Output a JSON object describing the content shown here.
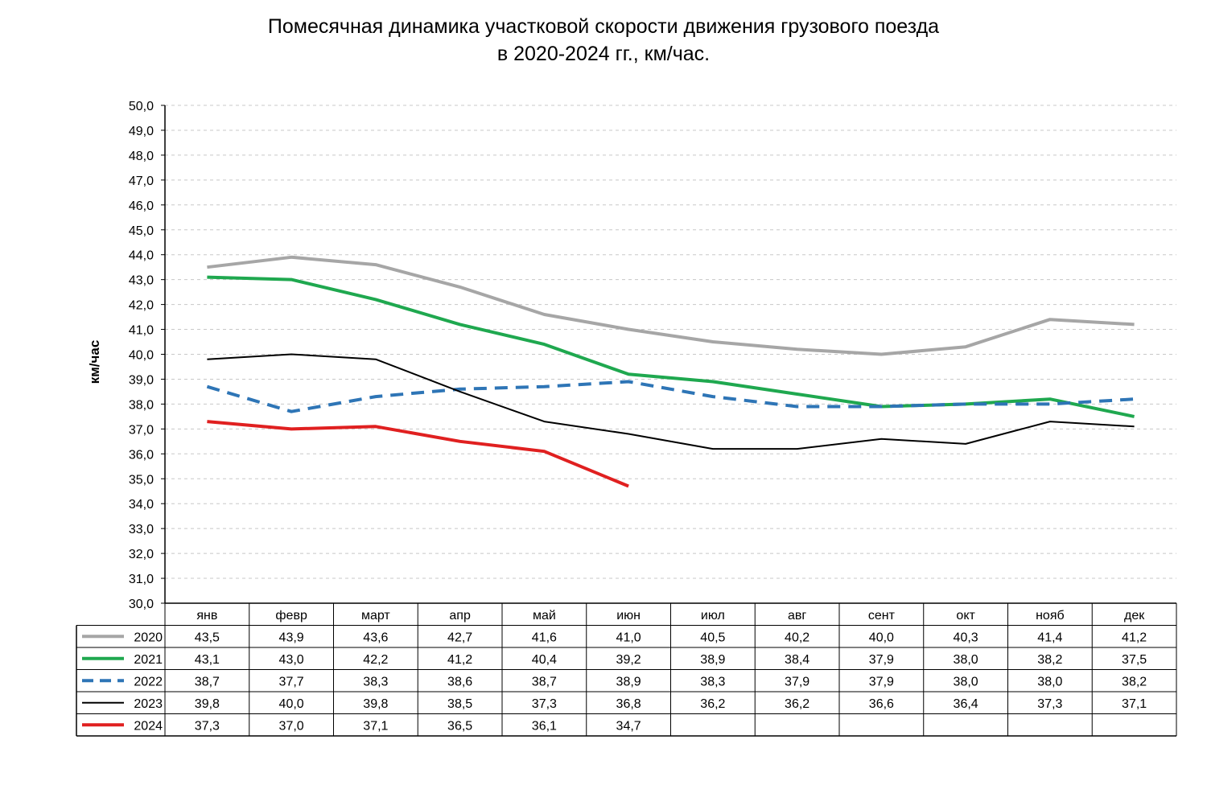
{
  "chart_data": {
    "type": "line",
    "title_line1": "Помесячная динамика  участковой скорости движения грузового поезда",
    "title_line2": "в 2020-2024 гг., км/час.",
    "ylabel": "км/час",
    "ylim": [
      30,
      50
    ],
    "yticks": [
      "30,0",
      "31,0",
      "32,0",
      "33,0",
      "34,0",
      "35,0",
      "36,0",
      "37,0",
      "38,0",
      "39,0",
      "40,0",
      "41,0",
      "42,0",
      "43,0",
      "44,0",
      "45,0",
      "46,0",
      "47,0",
      "48,0",
      "49,0",
      "50,0"
    ],
    "grid": true,
    "categories": [
      "янв",
      "февр",
      "март",
      "апр",
      "май",
      "июн",
      "июл",
      "авг",
      "сент",
      "окт",
      "нояб",
      "дек"
    ],
    "series": [
      {
        "name": "2020",
        "color": "#a6a6a6",
        "dash": "solid",
        "values": [
          43.5,
          43.9,
          43.6,
          42.7,
          41.6,
          41.0,
          40.5,
          40.2,
          40.0,
          40.3,
          41.4,
          41.2
        ],
        "labels": [
          "43,5",
          "43,9",
          "43,6",
          "42,7",
          "41,6",
          "41,0",
          "40,5",
          "40,2",
          "40,0",
          "40,3",
          "41,4",
          "41,2"
        ]
      },
      {
        "name": "2021",
        "color": "#1fa84f",
        "dash": "solid",
        "values": [
          43.1,
          43.0,
          42.2,
          41.2,
          40.4,
          39.2,
          38.9,
          38.4,
          37.9,
          38.0,
          38.2,
          37.5
        ],
        "labels": [
          "43,1",
          "43,0",
          "42,2",
          "41,2",
          "40,4",
          "39,2",
          "38,9",
          "38,4",
          "37,9",
          "38,0",
          "38,2",
          "37,5"
        ]
      },
      {
        "name": "2022",
        "color": "#2e75b6",
        "dash": "dashed",
        "values": [
          38.7,
          37.7,
          38.3,
          38.6,
          38.7,
          38.9,
          38.3,
          37.9,
          37.9,
          38.0,
          38.0,
          38.2
        ],
        "labels": [
          "38,7",
          "37,7",
          "38,3",
          "38,6",
          "38,7",
          "38,9",
          "38,3",
          "37,9",
          "37,9",
          "38,0",
          "38,0",
          "38,2"
        ]
      },
      {
        "name": "2023",
        "color": "#000000",
        "dash": "solid",
        "values": [
          39.8,
          40.0,
          39.8,
          38.5,
          37.3,
          36.8,
          36.2,
          36.2,
          36.6,
          36.4,
          37.3,
          37.1
        ],
        "labels": [
          "39,8",
          "40,0",
          "39,8",
          "38,5",
          "37,3",
          "36,8",
          "36,2",
          "36,2",
          "36,6",
          "36,4",
          "37,3",
          "37,1"
        ]
      },
      {
        "name": "2024",
        "color": "#e02020",
        "dash": "solid",
        "values": [
          37.3,
          37.0,
          37.1,
          36.5,
          36.1,
          34.7,
          null,
          null,
          null,
          null,
          null,
          null
        ],
        "labels": [
          "37,3",
          "37,0",
          "37,1",
          "36,5",
          "36,1",
          "34,7",
          "",
          "",
          "",
          "",
          "",
          ""
        ]
      }
    ]
  }
}
